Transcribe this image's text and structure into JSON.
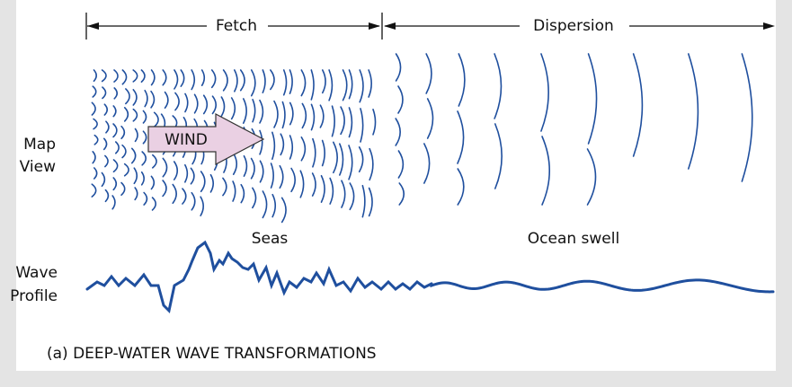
{
  "arrows": [
    {
      "label": "Fetch"
    },
    {
      "label": "Dispersion"
    }
  ],
  "map_label": [
    "Map",
    "View"
  ],
  "wind_label": "WIND",
  "zones": [
    "Seas",
    "Ocean swell"
  ],
  "profile_label": [
    "Wave",
    "Profile"
  ],
  "caption": "(a) DEEP-WATER WAVE TRANSFORMATIONS"
}
